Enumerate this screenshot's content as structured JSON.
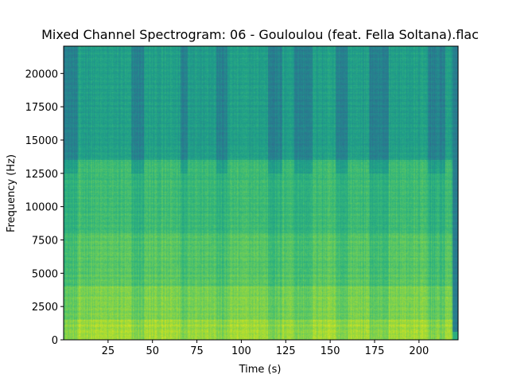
{
  "chart_data": {
    "type": "heatmap",
    "title": "Mixed Channel Spectrogram: 06 - Gouloulou (feat. Fella Soltana).flac",
    "xlabel": "Time (s)",
    "ylabel": "Frequency (Hz)",
    "xlim": [
      0,
      222
    ],
    "ylim": [
      0,
      22050
    ],
    "x_ticks": [
      25,
      50,
      75,
      100,
      125,
      150,
      175,
      200
    ],
    "x_tick_labels": [
      "25",
      "50",
      "75",
      "100",
      "125",
      "150",
      "175",
      "200"
    ],
    "y_ticks": [
      0,
      2500,
      5000,
      7500,
      10000,
      12500,
      15000,
      17500,
      20000
    ],
    "y_tick_labels": [
      "0",
      "2500",
      "5000",
      "7500",
      "10000",
      "12500",
      "15000",
      "17500",
      "20000"
    ],
    "colormap": "viridis",
    "signal_end_time": 219,
    "quiet_segments": [
      {
        "start": 0,
        "end": 8
      },
      {
        "start": 38,
        "end": 45
      },
      {
        "start": 66,
        "end": 70
      },
      {
        "start": 86,
        "end": 92
      },
      {
        "start": 115,
        "end": 123
      },
      {
        "start": 130,
        "end": 140
      },
      {
        "start": 153,
        "end": 160
      },
      {
        "start": 172,
        "end": 183
      },
      {
        "start": 205,
        "end": 215
      }
    ]
  }
}
